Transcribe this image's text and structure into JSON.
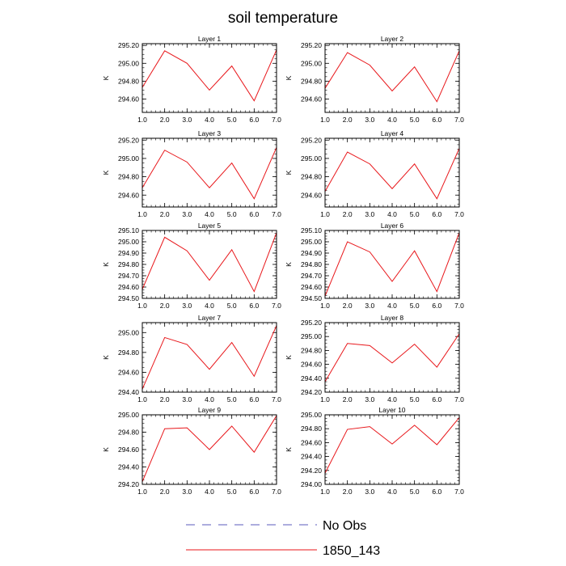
{
  "figure": {
    "title": "soil temperature"
  },
  "legend": {
    "entries": [
      {
        "label": "No Obs",
        "style": "dashed",
        "color": "#5b5bbd"
      },
      {
        "label": "1850_143",
        "style": "solid",
        "color": "#e8161a"
      }
    ]
  },
  "chart_data": [
    {
      "type": "line",
      "title": "Layer 1",
      "xlabel": "",
      "ylabel": "K",
      "xlim": [
        1,
        7
      ],
      "ylim": [
        294.45,
        295.22
      ],
      "xticks": [
        "1.0",
        "2.0",
        "3.0",
        "4.0",
        "5.0",
        "6.0",
        "7.0"
      ],
      "yticks": [
        "294.60",
        "294.80",
        "295.00",
        "295.20"
      ],
      "series": [
        {
          "name": "1850_143",
          "color": "#e8161a",
          "x": [
            1,
            2,
            3,
            4,
            5,
            6,
            7
          ],
          "y": [
            294.73,
            295.14,
            295.0,
            294.7,
            294.97,
            294.58,
            295.15
          ]
        }
      ]
    },
    {
      "type": "line",
      "title": "Layer 2",
      "xlabel": "",
      "ylabel": "K",
      "xlim": [
        1,
        7
      ],
      "ylim": [
        294.45,
        295.22
      ],
      "xticks": [
        "1.0",
        "2.0",
        "3.0",
        "4.0",
        "5.0",
        "6.0",
        "7.0"
      ],
      "yticks": [
        "294.60",
        "294.80",
        "295.00",
        "295.20"
      ],
      "series": [
        {
          "name": "1850_143",
          "color": "#e8161a",
          "x": [
            1,
            2,
            3,
            4,
            5,
            6,
            7
          ],
          "y": [
            294.72,
            295.12,
            294.98,
            294.69,
            294.96,
            294.57,
            295.14
          ]
        }
      ]
    },
    {
      "type": "line",
      "title": "Layer 3",
      "xlabel": "",
      "ylabel": "K",
      "xlim": [
        1,
        7
      ],
      "ylim": [
        294.47,
        295.22
      ],
      "xticks": [
        "1.0",
        "2.0",
        "3.0",
        "4.0",
        "5.0",
        "6.0",
        "7.0"
      ],
      "yticks": [
        "294.60",
        "294.80",
        "295.00",
        "295.20"
      ],
      "series": [
        {
          "name": "1850_143",
          "color": "#e8161a",
          "x": [
            1,
            2,
            3,
            4,
            5,
            6,
            7
          ],
          "y": [
            294.68,
            295.09,
            294.96,
            294.68,
            294.95,
            294.56,
            295.12
          ]
        }
      ]
    },
    {
      "type": "line",
      "title": "Layer 4",
      "xlabel": "",
      "ylabel": "K",
      "xlim": [
        1,
        7
      ],
      "ylim": [
        294.47,
        295.22
      ],
      "xticks": [
        "1.0",
        "2.0",
        "3.0",
        "4.0",
        "5.0",
        "6.0",
        "7.0"
      ],
      "yticks": [
        "294.60",
        "294.80",
        "295.00",
        "295.20"
      ],
      "series": [
        {
          "name": "1850_143",
          "color": "#e8161a",
          "x": [
            1,
            2,
            3,
            4,
            5,
            6,
            7
          ],
          "y": [
            294.64,
            295.07,
            294.94,
            294.67,
            294.94,
            294.56,
            295.11
          ]
        }
      ]
    },
    {
      "type": "line",
      "title": "Layer 5",
      "xlabel": "",
      "ylabel": "K",
      "xlim": [
        1,
        7
      ],
      "ylim": [
        294.5,
        295.1
      ],
      "xticks": [
        "1.0",
        "2.0",
        "3.0",
        "4.0",
        "5.0",
        "6.0",
        "7.0"
      ],
      "yticks": [
        "294.50",
        "294.60",
        "294.70",
        "294.80",
        "294.90",
        "295.00",
        "295.10"
      ],
      "series": [
        {
          "name": "1850_143",
          "color": "#e8161a",
          "x": [
            1,
            2,
            3,
            4,
            5,
            6,
            7
          ],
          "y": [
            294.58,
            295.04,
            294.92,
            294.66,
            294.93,
            294.56,
            295.08
          ]
        }
      ]
    },
    {
      "type": "line",
      "title": "Layer 6",
      "xlabel": "",
      "ylabel": "K",
      "xlim": [
        1,
        7
      ],
      "ylim": [
        294.5,
        295.1
      ],
      "xticks": [
        "1.0",
        "2.0",
        "3.0",
        "4.0",
        "5.0",
        "6.0",
        "7.0"
      ],
      "yticks": [
        "294.50",
        "294.60",
        "294.70",
        "294.80",
        "294.90",
        "295.00",
        "295.10"
      ],
      "series": [
        {
          "name": "1850_143",
          "color": "#e8161a",
          "x": [
            1,
            2,
            3,
            4,
            5,
            6,
            7
          ],
          "y": [
            294.52,
            295.0,
            294.91,
            294.65,
            294.92,
            294.56,
            295.08
          ]
        }
      ]
    },
    {
      "type": "line",
      "title": "Layer 7",
      "xlabel": "",
      "ylabel": "K",
      "xlim": [
        1,
        7
      ],
      "ylim": [
        294.4,
        295.1
      ],
      "xticks": [
        "1.0",
        "2.0",
        "3.0",
        "4.0",
        "5.0",
        "6.0",
        "7.0"
      ],
      "yticks": [
        "294.40",
        "294.60",
        "294.80",
        "295.00"
      ],
      "series": [
        {
          "name": "1850_143",
          "color": "#e8161a",
          "x": [
            1,
            2,
            3,
            4,
            5,
            6,
            7
          ],
          "y": [
            294.43,
            294.95,
            294.88,
            294.63,
            294.9,
            294.56,
            295.07
          ]
        }
      ]
    },
    {
      "type": "line",
      "title": "Layer 8",
      "xlabel": "",
      "ylabel": "K",
      "xlim": [
        1,
        7
      ],
      "ylim": [
        294.2,
        295.2
      ],
      "xticks": [
        "1.0",
        "2.0",
        "3.0",
        "4.0",
        "5.0",
        "6.0",
        "7.0"
      ],
      "yticks": [
        "294.20",
        "294.40",
        "294.60",
        "294.80",
        "295.00",
        "295.20"
      ],
      "series": [
        {
          "name": "1850_143",
          "color": "#e8161a",
          "x": [
            1,
            2,
            3,
            4,
            5,
            6,
            7
          ],
          "y": [
            294.35,
            294.9,
            294.87,
            294.62,
            294.89,
            294.56,
            295.04
          ]
        }
      ]
    },
    {
      "type": "line",
      "title": "Layer 9",
      "xlabel": "",
      "ylabel": "K",
      "xlim": [
        1,
        7
      ],
      "ylim": [
        294.2,
        295.0
      ],
      "xticks": [
        "1.0",
        "2.0",
        "3.0",
        "4.0",
        "5.0",
        "6.0",
        "7.0"
      ],
      "yticks": [
        "294.20",
        "294.40",
        "294.60",
        "294.80",
        "295.00"
      ],
      "series": [
        {
          "name": "1850_143",
          "color": "#e8161a",
          "x": [
            1,
            2,
            3,
            4,
            5,
            6,
            7
          ],
          "y": [
            294.23,
            294.84,
            294.85,
            294.6,
            294.87,
            294.57,
            294.99
          ]
        }
      ]
    },
    {
      "type": "line",
      "title": "Layer 10",
      "xlabel": "",
      "ylabel": "K",
      "xlim": [
        1,
        7
      ],
      "ylim": [
        294.0,
        295.0
      ],
      "xticks": [
        "1.0",
        "2.0",
        "3.0",
        "4.0",
        "5.0",
        "6.0",
        "7.0"
      ],
      "yticks": [
        "294.00",
        "294.20",
        "294.40",
        "294.60",
        "294.80",
        "295.00"
      ],
      "series": [
        {
          "name": "1850_143",
          "color": "#e8161a",
          "x": [
            1,
            2,
            3,
            4,
            5,
            6,
            7
          ],
          "y": [
            294.16,
            294.79,
            294.83,
            294.58,
            294.85,
            294.57,
            294.96
          ]
        }
      ]
    }
  ]
}
